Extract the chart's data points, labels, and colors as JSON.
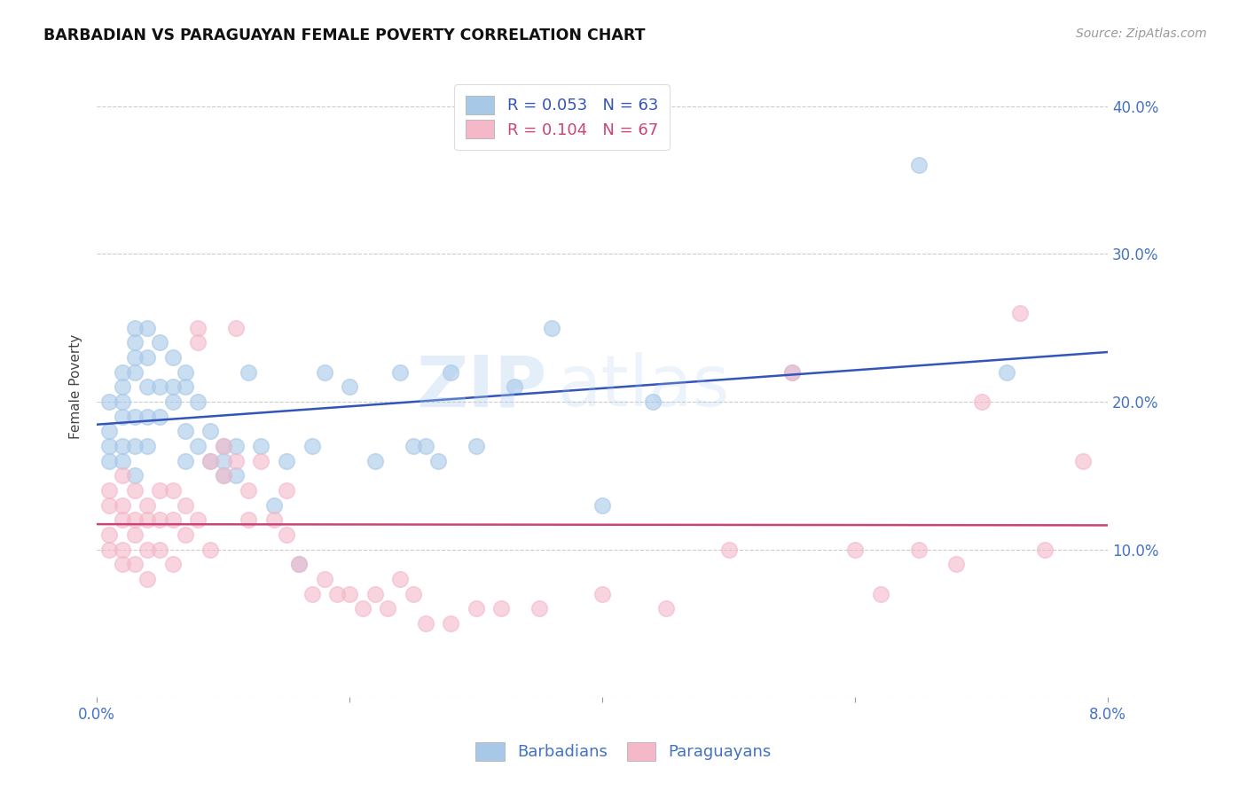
{
  "title": "BARBADIAN VS PARAGUAYAN FEMALE POVERTY CORRELATION CHART",
  "source": "Source: ZipAtlas.com",
  "ylabel": "Female Poverty",
  "x_min": 0.0,
  "x_max": 0.08,
  "y_min": 0.0,
  "y_max": 0.42,
  "y_ticks": [
    0.0,
    0.1,
    0.2,
    0.3,
    0.4
  ],
  "y_tick_labels_right": [
    "",
    "10.0%",
    "20.0%",
    "30.0%",
    "40.0%"
  ],
  "barbadian_color": "#a8c8e8",
  "paraguayan_color": "#f4b8c8",
  "line_blue": "#3355bb",
  "line_pink": "#cc4477",
  "background_color": "#ffffff",
  "grid_color": "#cccccc",
  "tick_label_color": "#4472c4",
  "watermark1": "ZIP",
  "watermark2": "atlas",
  "barbadians_x": [
    0.001,
    0.001,
    0.001,
    0.001,
    0.002,
    0.002,
    0.002,
    0.002,
    0.002,
    0.002,
    0.003,
    0.003,
    0.003,
    0.003,
    0.003,
    0.003,
    0.003,
    0.004,
    0.004,
    0.004,
    0.004,
    0.004,
    0.005,
    0.005,
    0.005,
    0.006,
    0.006,
    0.006,
    0.007,
    0.007,
    0.007,
    0.007,
    0.008,
    0.008,
    0.009,
    0.009,
    0.01,
    0.01,
    0.01,
    0.011,
    0.011,
    0.012,
    0.013,
    0.014,
    0.015,
    0.016,
    0.017,
    0.018,
    0.02,
    0.022,
    0.024,
    0.025,
    0.026,
    0.027,
    0.028,
    0.03,
    0.033,
    0.036,
    0.04,
    0.044,
    0.055,
    0.065,
    0.072
  ],
  "barbadians_y": [
    0.2,
    0.18,
    0.17,
    0.16,
    0.22,
    0.21,
    0.2,
    0.19,
    0.17,
    0.16,
    0.25,
    0.24,
    0.23,
    0.22,
    0.19,
    0.17,
    0.15,
    0.25,
    0.23,
    0.21,
    0.19,
    0.17,
    0.24,
    0.21,
    0.19,
    0.23,
    0.21,
    0.2,
    0.22,
    0.21,
    0.18,
    0.16,
    0.2,
    0.17,
    0.18,
    0.16,
    0.17,
    0.16,
    0.15,
    0.17,
    0.15,
    0.22,
    0.17,
    0.13,
    0.16,
    0.09,
    0.17,
    0.22,
    0.21,
    0.16,
    0.22,
    0.17,
    0.17,
    0.16,
    0.22,
    0.17,
    0.21,
    0.25,
    0.13,
    0.2,
    0.22,
    0.36,
    0.22
  ],
  "paraguayans_x": [
    0.001,
    0.001,
    0.001,
    0.001,
    0.002,
    0.002,
    0.002,
    0.002,
    0.002,
    0.003,
    0.003,
    0.003,
    0.003,
    0.004,
    0.004,
    0.004,
    0.004,
    0.005,
    0.005,
    0.005,
    0.006,
    0.006,
    0.006,
    0.007,
    0.007,
    0.008,
    0.008,
    0.008,
    0.009,
    0.009,
    0.01,
    0.01,
    0.011,
    0.011,
    0.012,
    0.012,
    0.013,
    0.014,
    0.015,
    0.015,
    0.016,
    0.017,
    0.018,
    0.019,
    0.02,
    0.021,
    0.022,
    0.023,
    0.024,
    0.025,
    0.026,
    0.028,
    0.03,
    0.032,
    0.035,
    0.04,
    0.045,
    0.05,
    0.055,
    0.06,
    0.062,
    0.065,
    0.068,
    0.07,
    0.073,
    0.075,
    0.078
  ],
  "paraguayans_y": [
    0.14,
    0.13,
    0.11,
    0.1,
    0.15,
    0.13,
    0.12,
    0.1,
    0.09,
    0.14,
    0.12,
    0.11,
    0.09,
    0.13,
    0.12,
    0.1,
    0.08,
    0.14,
    0.12,
    0.1,
    0.14,
    0.12,
    0.09,
    0.13,
    0.11,
    0.25,
    0.24,
    0.12,
    0.16,
    0.1,
    0.17,
    0.15,
    0.25,
    0.16,
    0.14,
    0.12,
    0.16,
    0.12,
    0.14,
    0.11,
    0.09,
    0.07,
    0.08,
    0.07,
    0.07,
    0.06,
    0.07,
    0.06,
    0.08,
    0.07,
    0.05,
    0.05,
    0.06,
    0.06,
    0.06,
    0.07,
    0.06,
    0.1,
    0.22,
    0.1,
    0.07,
    0.1,
    0.09,
    0.2,
    0.26,
    0.1,
    0.16
  ]
}
